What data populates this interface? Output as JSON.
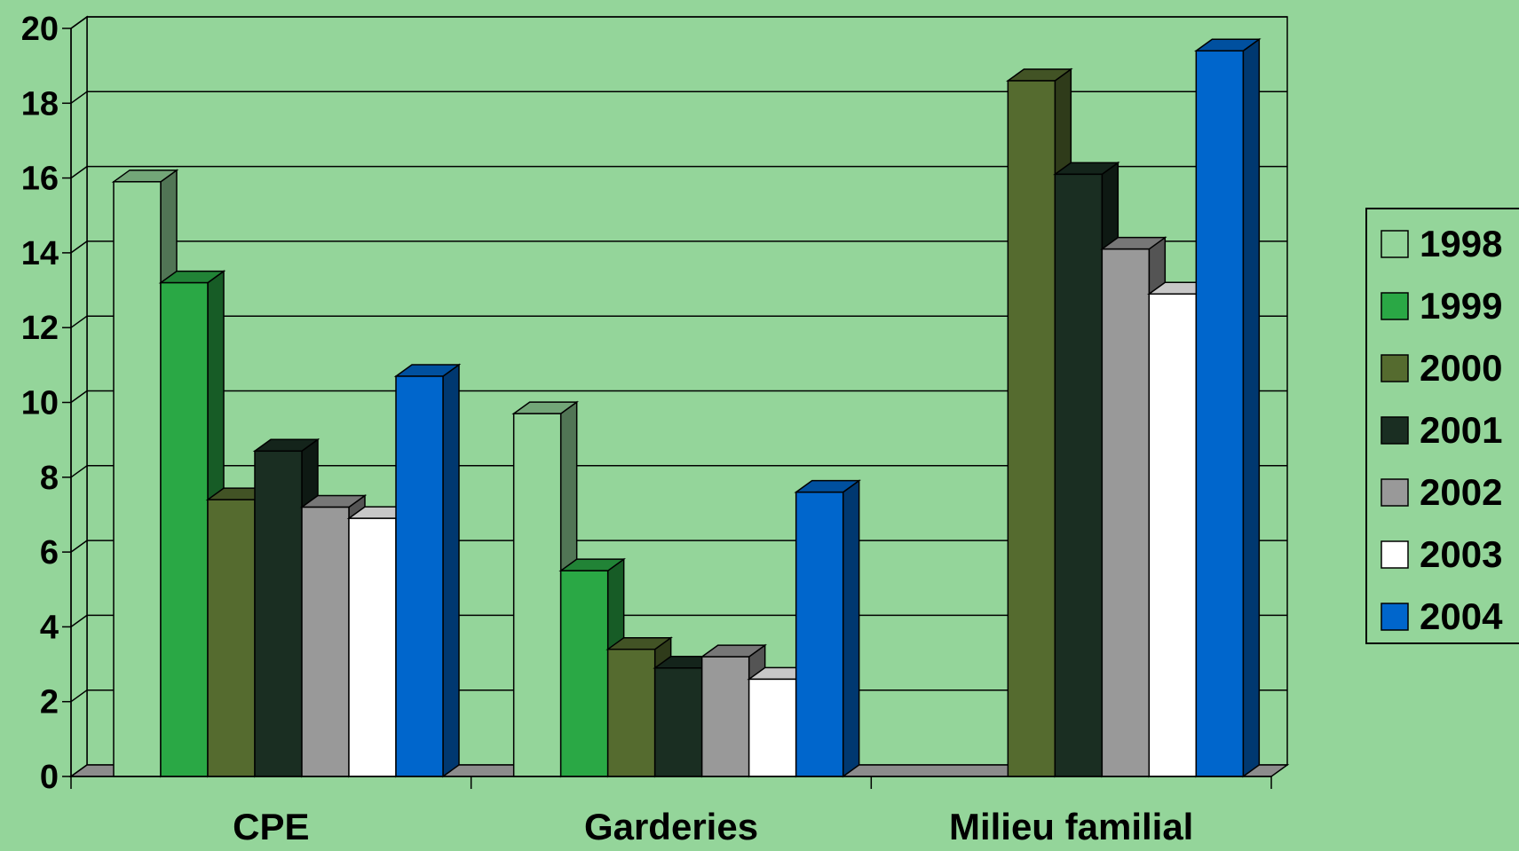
{
  "chart_data": {
    "type": "bar",
    "title": "",
    "xlabel": "",
    "ylabel": "",
    "ylim": [
      0,
      20
    ],
    "yticks": [
      0,
      2,
      4,
      6,
      8,
      10,
      12,
      14,
      16,
      18,
      20
    ],
    "grid": true,
    "legend_position": "right",
    "categories": [
      "CPE",
      "Garderies",
      "Milieu familial"
    ],
    "series": [
      {
        "name": "1998",
        "color": "#94d59a",
        "values": [
          15.9,
          9.7,
          0
        ]
      },
      {
        "name": "1999",
        "color": "#2aa845",
        "values": [
          13.2,
          5.5,
          0
        ]
      },
      {
        "name": "2000",
        "color": "#556b2f",
        "values": [
          7.4,
          3.4,
          18.6
        ]
      },
      {
        "name": "2001",
        "color": "#1a2e22",
        "values": [
          8.7,
          2.9,
          16.1
        ]
      },
      {
        "name": "2002",
        "color": "#999999",
        "values": [
          7.2,
          3.2,
          14.1
        ]
      },
      {
        "name": "2003",
        "color": "#ffffff",
        "values": [
          6.9,
          2.6,
          12.9
        ]
      },
      {
        "name": "2004",
        "color": "#0066cc",
        "values": [
          10.7,
          7.6,
          19.4
        ]
      }
    ]
  }
}
